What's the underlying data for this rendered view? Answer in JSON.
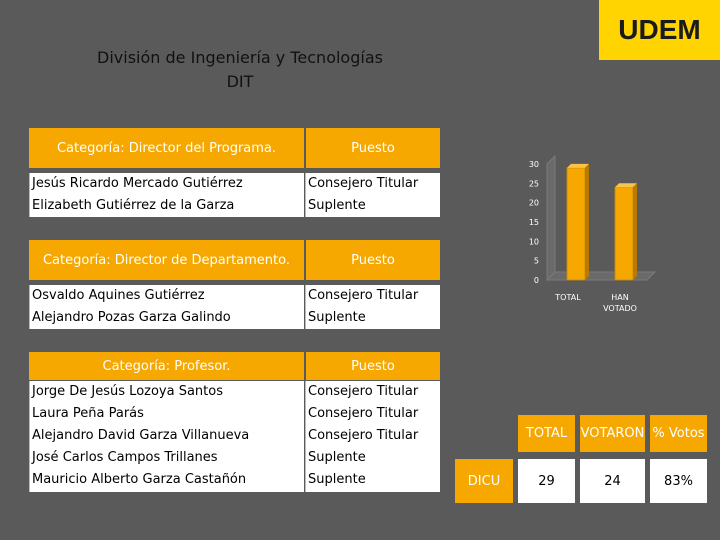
{
  "logo": "UDEM",
  "title_line1": "División de Ingeniería y Tecnologías",
  "title_line2": "DIT",
  "sections": [
    {
      "category": "Categoría: Director del Programa.",
      "puesto_header": "Puesto",
      "names": [
        "Jesús Ricardo Mercado Gutiérrez",
        "Elizabeth Gutiérrez de la Garza"
      ],
      "puestos": [
        "Consejero Titular",
        "Suplente"
      ]
    },
    {
      "category": "Categoría: Director de Departamento.",
      "puesto_header": "Puesto",
      "names": [
        "Osvaldo Aquines Gutiérrez",
        "Alejandro Pozas Garza Galindo"
      ],
      "puestos": [
        "Consejero Titular",
        "Suplente"
      ]
    },
    {
      "category": "Categoría: Profesor.",
      "puesto_header": "Puesto",
      "names": [
        "Jorge De Jesús Lozoya Santos",
        "Laura Peña Parás",
        "Alejandro David Garza Villanueva",
        "José Carlos Campos Trillanes",
        "Mauricio Alberto Garza Castañón"
      ],
      "puestos": [
        "Consejero Titular",
        "Consejero Titular",
        "Consejero Titular",
        "Suplente",
        "Suplente"
      ]
    }
  ],
  "summary": {
    "headers": [
      "TOTAL",
      "VOTARON",
      "% Votos"
    ],
    "row_label": "DICU",
    "values": [
      "29",
      "24",
      "83%"
    ]
  },
  "colors": {
    "accent": "#f6a800",
    "background": "#5a5a5a",
    "bar": "#f6a800",
    "logo_bg": "#ffd400"
  },
  "chart_data": {
    "type": "bar",
    "categories": [
      "TOTAL",
      "HAN VOTADO"
    ],
    "values": [
      29,
      24
    ],
    "ylim": [
      0,
      30
    ],
    "yticks": [
      0,
      5,
      10,
      15,
      20,
      25,
      30
    ],
    "grid": false,
    "legend": "none"
  }
}
